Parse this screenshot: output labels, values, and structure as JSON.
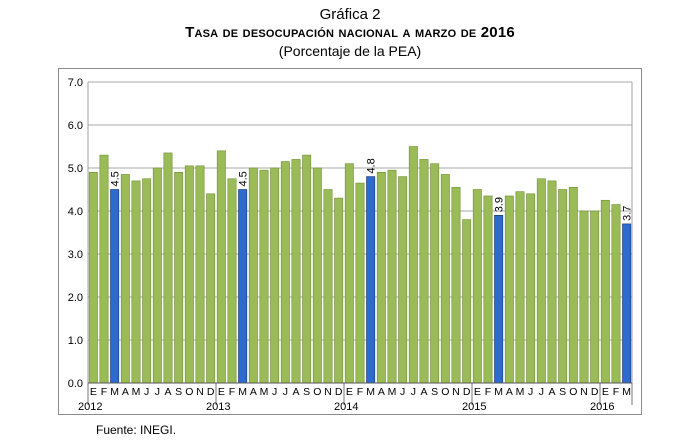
{
  "figure_label": "Gráfica 2",
  "title": "Tasa de desocupación nacional a marzo de 2016",
  "subtitle": "(Porcentaje de la PEA)",
  "source": "Fuente: INEGI.",
  "colors": {
    "bar": "#9bbb59",
    "bar_stroke": "#6f8f33",
    "highlight": "#2e6bd1",
    "highlight_stroke": "#12306e",
    "grid": "#8c8c8c"
  },
  "chart_data": {
    "type": "bar",
    "title": "Tasa de desocupación nacional a marzo de 2016",
    "subtitle": "(Porcentaje de la PEA)",
    "xlabel": "",
    "ylabel": "",
    "ylim": [
      0,
      7
    ],
    "yticks": [
      "0.0",
      "1.0",
      "2.0",
      "3.0",
      "4.0",
      "5.0",
      "6.0",
      "7.0"
    ],
    "grid": true,
    "categories": [
      "E",
      "F",
      "M",
      "A",
      "M",
      "J",
      "J",
      "A",
      "S",
      "O",
      "N",
      "D",
      "E",
      "F",
      "M",
      "A",
      "M",
      "J",
      "J",
      "A",
      "S",
      "O",
      "N",
      "D",
      "E",
      "F",
      "M",
      "A",
      "M",
      "J",
      "J",
      "A",
      "S",
      "O",
      "N",
      "D",
      "E",
      "F",
      "M",
      "A",
      "M",
      "J",
      "J",
      "A",
      "S",
      "O",
      "N",
      "D",
      "E",
      "F",
      "M"
    ],
    "years": [
      {
        "label": "2012",
        "start_index": 0
      },
      {
        "label": "2013",
        "start_index": 12
      },
      {
        "label": "2014",
        "start_index": 24
      },
      {
        "label": "2015",
        "start_index": 36
      },
      {
        "label": "2016",
        "start_index": 48
      }
    ],
    "values": [
      4.9,
      5.3,
      4.5,
      4.85,
      4.7,
      4.75,
      5.0,
      5.35,
      4.9,
      5.05,
      5.05,
      4.4,
      5.4,
      4.75,
      4.5,
      5.0,
      4.95,
      5.0,
      5.15,
      5.2,
      5.3,
      5.0,
      4.5,
      4.3,
      5.1,
      4.65,
      4.8,
      4.9,
      4.95,
      4.8,
      5.5,
      5.2,
      5.1,
      4.85,
      4.55,
      3.8,
      4.5,
      4.35,
      3.9,
      4.35,
      4.45,
      4.4,
      4.75,
      4.7,
      4.5,
      4.55,
      4.0,
      4.0,
      4.25,
      4.15,
      3.7
    ],
    "highlighted": [
      {
        "index": 2,
        "label": "4.5"
      },
      {
        "index": 14,
        "label": "4.5"
      },
      {
        "index": 26,
        "label": "4.8"
      },
      {
        "index": 38,
        "label": "3.9"
      },
      {
        "index": 50,
        "label": "3.7"
      }
    ]
  }
}
